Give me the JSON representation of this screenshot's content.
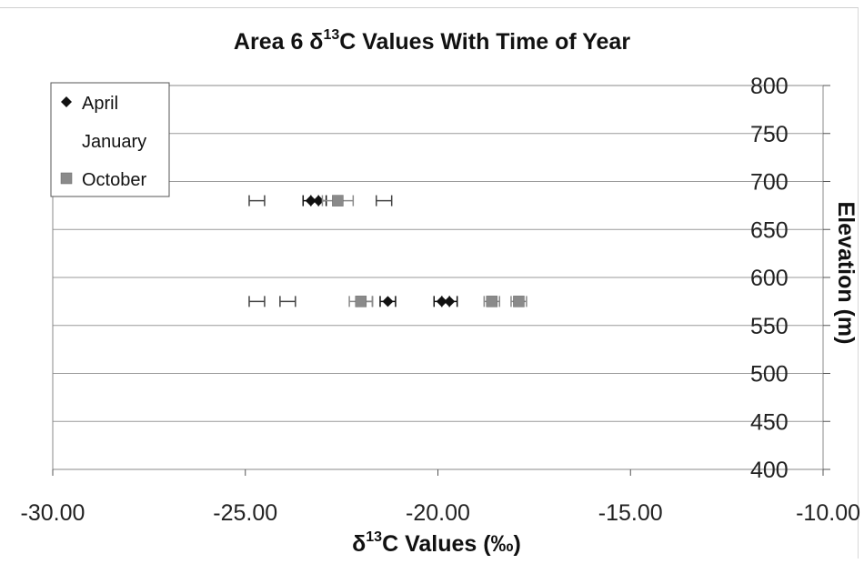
{
  "chart_data": {
    "type": "scatter",
    "title": "Area 6 δ13C Values With Time of Year",
    "title_parts": {
      "prefix": "Area 6 δ",
      "sup": "13",
      "suffix": "C Values With Time of Year"
    },
    "xlabel": "δ13C Values (‰)",
    "xlabel_parts": {
      "prefix": "δ",
      "sup": "13",
      "suffix": "C Values (‰)"
    },
    "ylabel": "Elevation (m)",
    "xlim": [
      -30,
      -10
    ],
    "ylim": [
      400,
      800
    ],
    "x_ticks": [
      "-30.00",
      "-25.00",
      "-20.00",
      "-15.00",
      "-10.00"
    ],
    "y_ticks": [
      "400",
      "450",
      "500",
      "550",
      "600",
      "650",
      "700",
      "750",
      "800"
    ],
    "grid": true,
    "y_axis_position": "right",
    "legend_position": "top-left",
    "series": [
      {
        "name": "April",
        "marker": "diamond",
        "color": "#111111",
        "points": [
          {
            "x": -23.3,
            "y": 680,
            "err": 0.2
          },
          {
            "x": -23.1,
            "y": 680,
            "err": 0.2
          },
          {
            "x": -21.3,
            "y": 575,
            "err": 0.2
          },
          {
            "x": -19.9,
            "y": 575,
            "err": 0.2
          },
          {
            "x": -19.7,
            "y": 575,
            "err": 0.2
          }
        ]
      },
      {
        "name": "January",
        "marker": "none",
        "color": "#444444",
        "points": [
          {
            "x": -24.7,
            "y": 680,
            "err": 0.2
          },
          {
            "x": -21.4,
            "y": 680,
            "err": 0.2
          },
          {
            "x": -24.7,
            "y": 575,
            "err": 0.2
          },
          {
            "x": -23.9,
            "y": 575,
            "err": 0.2
          },
          {
            "x": -21.9,
            "y": 575,
            "err": 0.2
          }
        ]
      },
      {
        "name": "October",
        "marker": "square",
        "color": "#8a8a8a",
        "points": [
          {
            "x": -22.6,
            "y": 680,
            "err": 0.4
          },
          {
            "x": -22.0,
            "y": 575,
            "err": 0.3
          },
          {
            "x": -18.6,
            "y": 575,
            "err": 0.2
          },
          {
            "x": -17.9,
            "y": 575,
            "err": 0.2
          }
        ]
      }
    ]
  }
}
